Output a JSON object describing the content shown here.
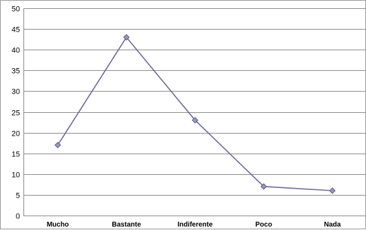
{
  "chart_data": {
    "type": "line",
    "categories": [
      "Mucho",
      "Bastante",
      "Indiferente",
      "Poco",
      "Nada"
    ],
    "series": [
      {
        "values": [
          17,
          43,
          23,
          7,
          6
        ]
      }
    ],
    "ylim": [
      0,
      50
    ],
    "ytick_step": 5,
    "yticks": [
      "0",
      "5",
      "10",
      "15",
      "20",
      "25",
      "30",
      "35",
      "40",
      "45",
      "50"
    ],
    "grid": true,
    "legend": "none",
    "marker": "diamond",
    "colors": {
      "line": "#6a6a9c",
      "marker_fill": "#9898c0",
      "marker_stroke": "#5e5e8e",
      "grid": "#8c8c8c"
    }
  }
}
